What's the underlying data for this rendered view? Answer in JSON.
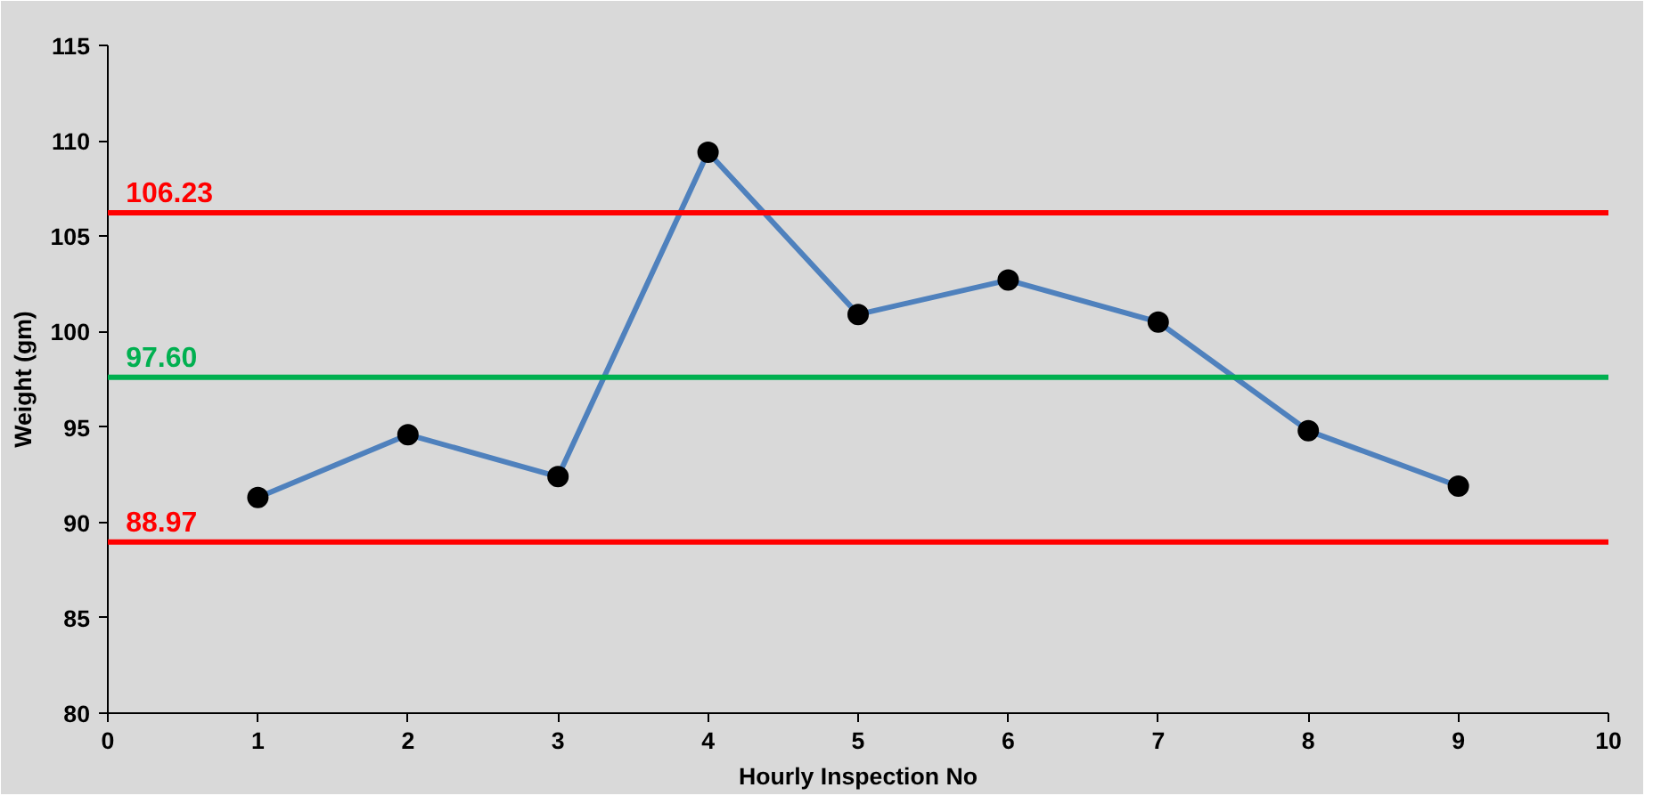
{
  "chart_data": {
    "type": "line",
    "xlabel": "Hourly Inspection No",
    "ylabel": "Weight (gm)",
    "x": [
      1,
      2,
      3,
      4,
      5,
      6,
      7,
      8,
      9
    ],
    "series": [
      {
        "color": "#4f81bd",
        "values": [
          91.3,
          94.6,
          92.4,
          109.4,
          100.9,
          102.7,
          100.5,
          94.8,
          91.9
        ]
      }
    ],
    "xlim": [
      0,
      10
    ],
    "xticks": [
      0,
      1,
      2,
      3,
      4,
      5,
      6,
      7,
      8,
      9,
      10
    ],
    "ylim": [
      80,
      115
    ],
    "yticks": [
      80,
      85,
      90,
      95,
      100,
      105,
      110,
      115
    ],
    "ref_lines": [
      {
        "axis": "y",
        "value": 106.23,
        "label": "106.23",
        "color": "#ff0000"
      },
      {
        "axis": "y",
        "value": 97.6,
        "label": "97.60",
        "color": "#00b050"
      },
      {
        "axis": "y",
        "value": 88.97,
        "label": "88.97",
        "color": "#ff0000"
      }
    ],
    "marker": "circle",
    "grid": false
  }
}
